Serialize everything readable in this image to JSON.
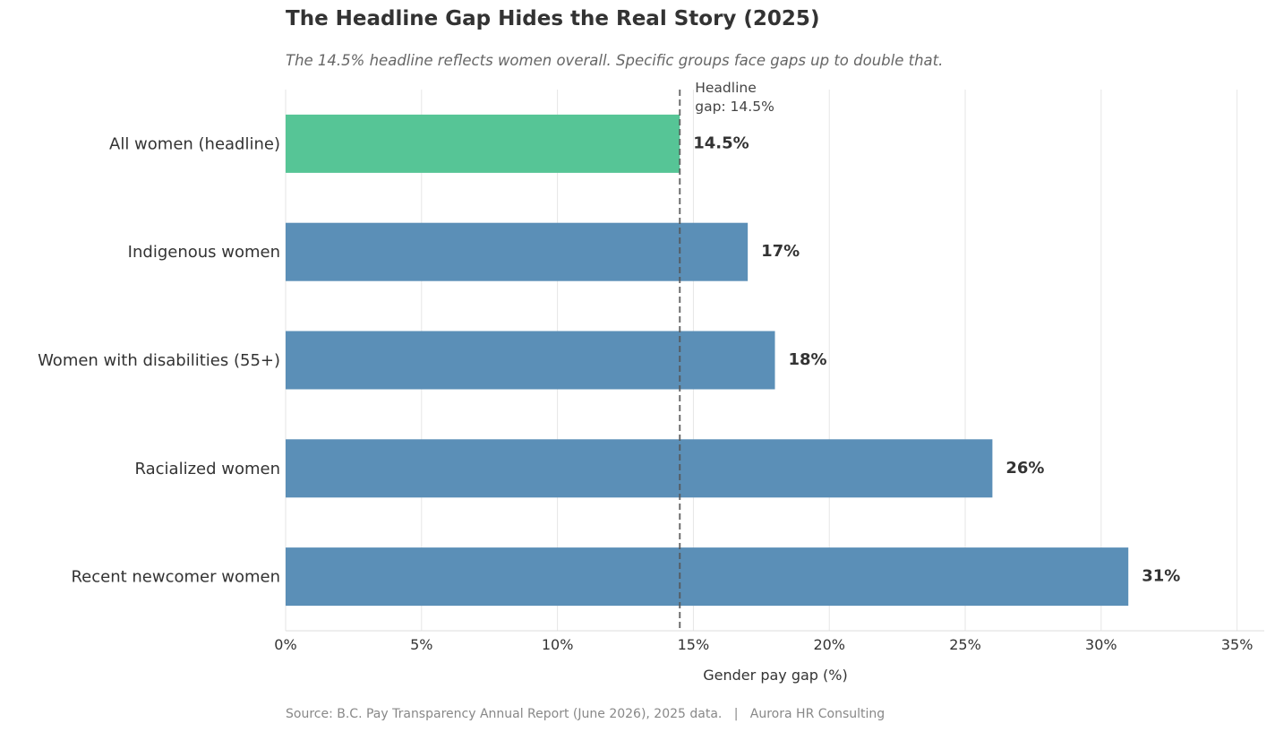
{
  "chart_data": {
    "type": "bar",
    "orientation": "horizontal",
    "title": "The Headline Gap Hides the Real Story (2025)",
    "subtitle": "The 14.5% headline reflects women overall. Specific groups face gaps up to double that.",
    "categories": [
      "All women (headline)",
      "Indigenous women",
      "Women with disabilities (55+)",
      "Racialized women",
      "Recent newcomer women"
    ],
    "values": [
      14.5,
      17,
      18,
      26,
      31
    ],
    "value_labels": [
      "14.5%",
      "17%",
      "18%",
      "26%",
      "31%"
    ],
    "bar_colors": [
      "#56c596",
      "#5b8fb7",
      "#5b8fb7",
      "#5b8fb7",
      "#5b8fb7"
    ],
    "xlabel": "Gender pay gap (%)",
    "ylabel": "",
    "xlim": [
      0,
      36
    ],
    "xticks": [
      0,
      5,
      10,
      15,
      20,
      25,
      30,
      35
    ],
    "xtick_labels": [
      "0%",
      "5%",
      "10%",
      "15%",
      "20%",
      "25%",
      "30%",
      "35%"
    ],
    "grid": "vertical",
    "reference_line": {
      "value": 14.5,
      "label_line1": "Headline",
      "label_line2": "gap: 14.5%",
      "color": "#555555",
      "style": "dashed"
    },
    "source": "Source: B.C. Pay Transparency Annual Report (June 2026), 2025 data.   |   Aurora HR Consulting"
  },
  "colors": {
    "headline_bar": "#56c596",
    "group_bar": "#5b8fb7",
    "grid": "#e6e6e6",
    "text": "#333333"
  }
}
